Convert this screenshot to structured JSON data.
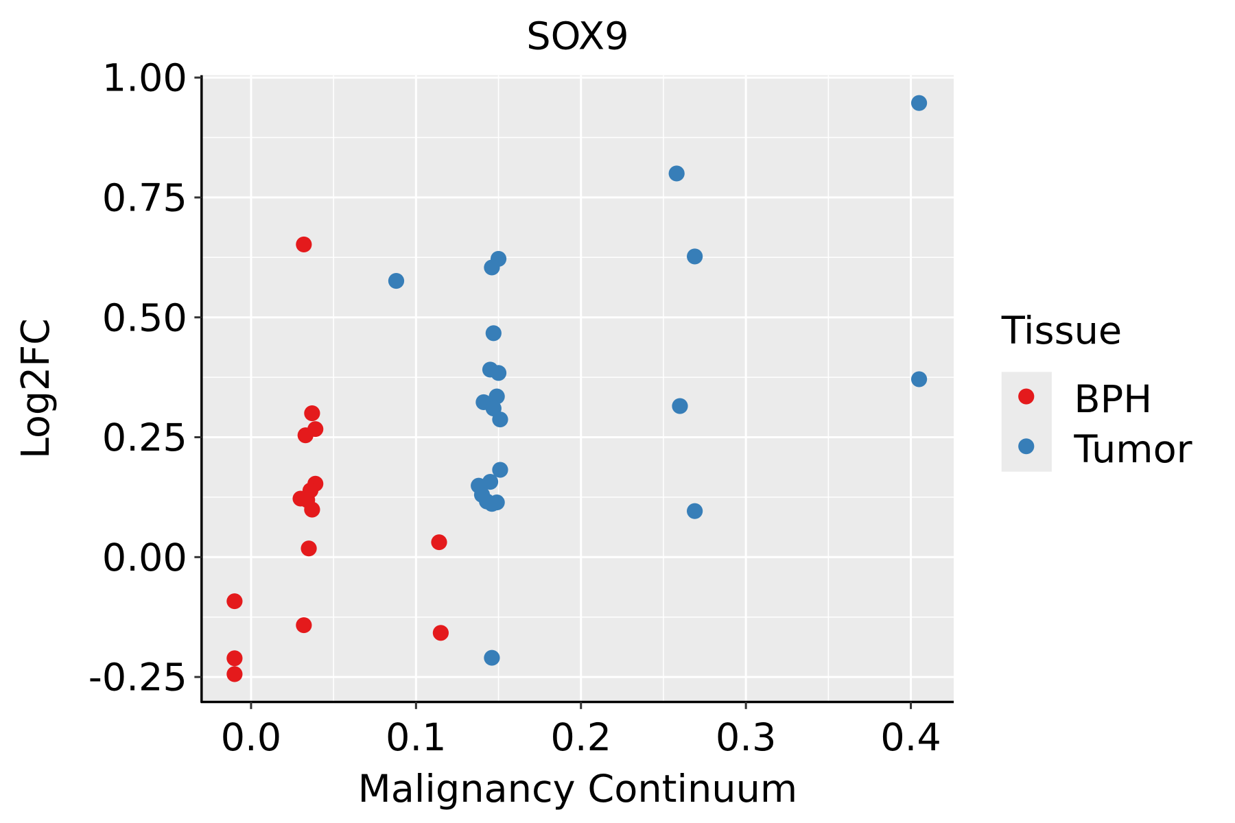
{
  "chart_data": {
    "type": "scatter",
    "title": "SOX9",
    "xlabel": "Malignancy Continuum",
    "ylabel": "Log2FC",
    "xlim": [
      -0.03,
      0.426
    ],
    "ylim": [
      -0.302,
      1.005
    ],
    "x_ticks": [
      0.0,
      0.1,
      0.2,
      0.3,
      0.4
    ],
    "x_tick_labels": [
      "0.0",
      "0.1",
      "0.2",
      "0.3",
      "0.4"
    ],
    "y_ticks": [
      -0.25,
      0.0,
      0.25,
      0.5,
      0.75,
      1.0
    ],
    "y_tick_labels": [
      "-0.25",
      "0.00",
      "0.25",
      "0.50",
      "0.75",
      "1.00"
    ],
    "grid": true,
    "legend": {
      "title": "Tissue",
      "placement": "right"
    },
    "series": [
      {
        "name": "BPH",
        "color": "#E41A1C",
        "points": [
          [
            0.032,
            0.652
          ],
          [
            0.037,
            0.3
          ],
          [
            0.033,
            0.254
          ],
          [
            0.039,
            0.267
          ],
          [
            0.039,
            0.153
          ],
          [
            0.036,
            0.139
          ],
          [
            0.03,
            0.122
          ],
          [
            0.034,
            0.119
          ],
          [
            0.037,
            0.099
          ],
          [
            0.035,
            0.018
          ],
          [
            0.114,
            0.031
          ],
          [
            -0.01,
            -0.092
          ],
          [
            0.032,
            -0.142
          ],
          [
            0.115,
            -0.158
          ],
          [
            -0.01,
            -0.211
          ],
          [
            -0.01,
            -0.244
          ]
        ]
      },
      {
        "name": "Tumor",
        "color": "#377EB8",
        "points": [
          [
            0.405,
            0.947
          ],
          [
            0.258,
            0.8
          ],
          [
            0.269,
            0.627
          ],
          [
            0.15,
            0.622
          ],
          [
            0.146,
            0.604
          ],
          [
            0.088,
            0.576
          ],
          [
            0.147,
            0.467
          ],
          [
            0.145,
            0.391
          ],
          [
            0.15,
            0.384
          ],
          [
            0.405,
            0.371
          ],
          [
            0.141,
            0.323
          ],
          [
            0.149,
            0.335
          ],
          [
            0.147,
            0.31
          ],
          [
            0.151,
            0.287
          ],
          [
            0.26,
            0.315
          ],
          [
            0.151,
            0.182
          ],
          [
            0.145,
            0.157
          ],
          [
            0.138,
            0.149
          ],
          [
            0.14,
            0.13
          ],
          [
            0.143,
            0.116
          ],
          [
            0.146,
            0.111
          ],
          [
            0.149,
            0.114
          ],
          [
            0.269,
            0.096
          ],
          [
            0.146,
            -0.21
          ]
        ]
      }
    ]
  }
}
